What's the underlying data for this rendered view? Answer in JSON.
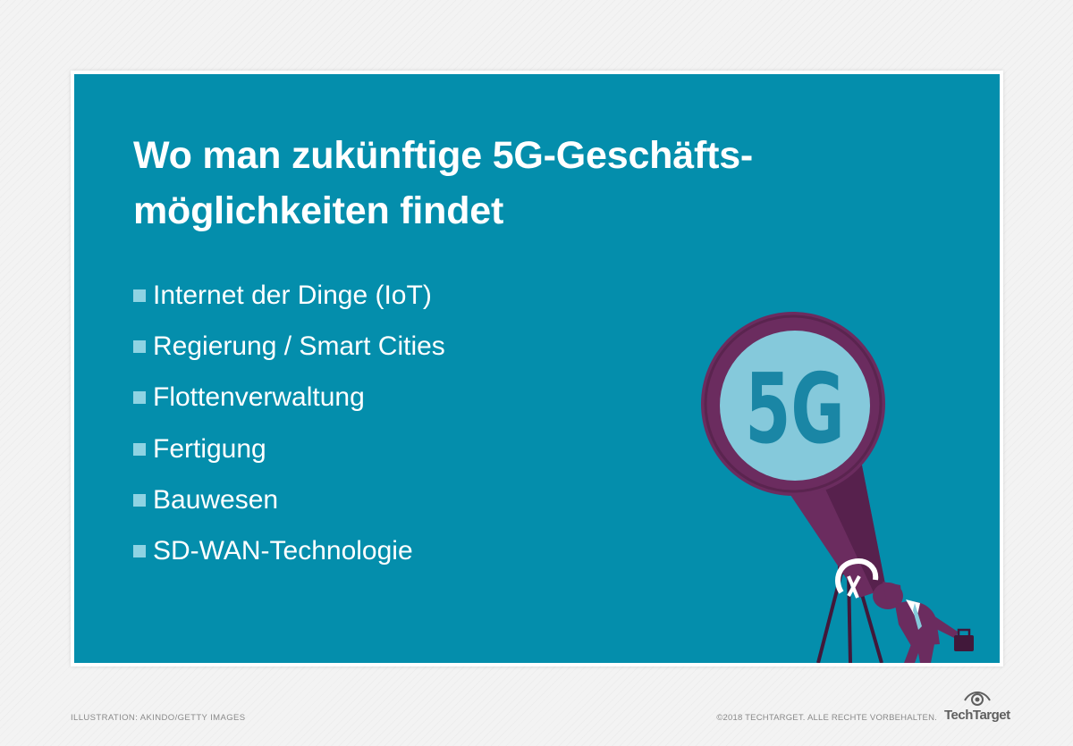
{
  "title": {
    "line1": "Wo man zukünftige 5G-Geschäfts-",
    "line2": "möglichkeiten findet"
  },
  "list_items": [
    "Internet der Dinge (IoT)",
    "Regierung / Smart Cities",
    "Flottenverwaltung",
    "Fertigung",
    "Bauwesen",
    "SD-WAN-Technologie"
  ],
  "illustration": {
    "lens_text": "5G"
  },
  "footer": {
    "credit": "ILLUSTRATION:  AKINDO/GETTY IMAGES",
    "copyright": "©2018 TECHTARGET. ALLE RECHTE VORBEHALTEN.",
    "brand": "TechTarget"
  },
  "colors": {
    "panel_background": "#048eac",
    "bullet": "#8ed3e3",
    "telescope_purple": "#6b2c5f",
    "lens": "#85c9db"
  }
}
